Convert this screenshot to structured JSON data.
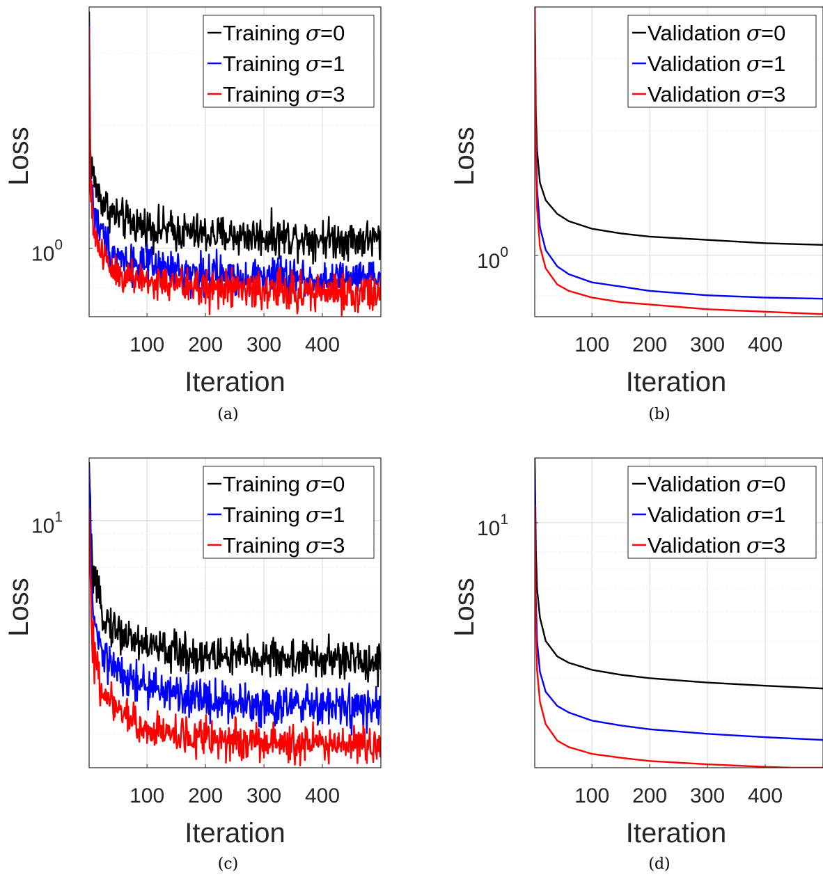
{
  "chart_data": [
    {
      "type": "line",
      "panel": "a",
      "caption": "(a)",
      "xlabel": "Iteration",
      "ylabel": "Loss",
      "x_ticks": [
        100,
        200,
        300,
        400
      ],
      "y_scale": "log",
      "y_tick_labels": [
        {
          "value": 1,
          "base": "10",
          "exp": "0"
        }
      ],
      "xlim": [
        1,
        500
      ],
      "ylim": [
        0.68,
        3.9
      ],
      "grid": true,
      "legend_position": "top-right",
      "noise": 0.055,
      "legend_prefix": "Training",
      "legend_suffix": "",
      "series": [
        {
          "sigma": "=0",
          "color": "#000000",
          "x": [
            1,
            3,
            10,
            20,
            40,
            60,
            100,
            150,
            200,
            300,
            400,
            500
          ],
          "y": [
            3.8,
            1.7,
            1.45,
            1.33,
            1.22,
            1.17,
            1.13,
            1.1,
            1.08,
            1.07,
            1.06,
            1.05
          ]
        },
        {
          "sigma": "=1",
          "color": "#0000ff",
          "x": [
            1,
            3,
            10,
            20,
            40,
            60,
            100,
            150,
            200,
            300,
            400,
            500
          ],
          "y": [
            3.6,
            1.5,
            1.22,
            1.1,
            0.99,
            0.94,
            0.9,
            0.88,
            0.86,
            0.85,
            0.84,
            0.84
          ]
        },
        {
          "sigma": "=3",
          "color": "#ff0000",
          "x": [
            1,
            3,
            10,
            20,
            40,
            60,
            100,
            150,
            200,
            300,
            400,
            500
          ],
          "y": [
            3.5,
            1.35,
            1.1,
            0.99,
            0.9,
            0.86,
            0.83,
            0.81,
            0.8,
            0.79,
            0.78,
            0.78
          ]
        }
      ]
    },
    {
      "type": "line",
      "panel": "b",
      "caption": "(b)",
      "xlabel": "Iteration",
      "ylabel": "Loss",
      "x_ticks": [
        100,
        200,
        300,
        400
      ],
      "y_scale": "log",
      "y_tick_labels": [
        {
          "value": 1,
          "base": "10",
          "exp": "0"
        }
      ],
      "xlim": [
        1,
        500
      ],
      "ylim": [
        0.71,
        4.0
      ],
      "grid": true,
      "legend_position": "top-right",
      "noise": 0,
      "legend_prefix": "Validation",
      "legend_suffix": "",
      "series": [
        {
          "sigma": "=0",
          "color": "#000000",
          "x": [
            1,
            3,
            5,
            10,
            20,
            40,
            60,
            100,
            150,
            200,
            300,
            400,
            500
          ],
          "y": [
            4.2,
            2.2,
            1.8,
            1.5,
            1.36,
            1.26,
            1.21,
            1.16,
            1.13,
            1.11,
            1.09,
            1.07,
            1.06
          ]
        },
        {
          "sigma": "=1",
          "color": "#0000ff",
          "x": [
            1,
            3,
            5,
            10,
            20,
            40,
            60,
            100,
            150,
            200,
            300,
            400,
            500
          ],
          "y": [
            4.2,
            1.9,
            1.45,
            1.17,
            1.03,
            0.94,
            0.9,
            0.86,
            0.84,
            0.82,
            0.8,
            0.79,
            0.785
          ]
        },
        {
          "sigma": "=3",
          "color": "#ff0000",
          "x": [
            1,
            3,
            5,
            10,
            20,
            40,
            60,
            100,
            150,
            200,
            300,
            400,
            500
          ],
          "y": [
            4.2,
            1.75,
            1.3,
            1.05,
            0.93,
            0.85,
            0.82,
            0.79,
            0.77,
            0.76,
            0.74,
            0.73,
            0.72
          ]
        }
      ]
    },
    {
      "type": "line",
      "panel": "c",
      "caption": "(c)",
      "xlabel": "Iteration",
      "ylabel": "Loss",
      "x_ticks": [
        100,
        200,
        300,
        400
      ],
      "y_scale": "log",
      "y_tick_labels": [
        {
          "value": 10,
          "base": "10",
          "exp": "1"
        }
      ],
      "xlim": [
        1,
        500
      ],
      "ylim": [
        1.55,
        16.0
      ],
      "grid": true,
      "legend_position": "top-right",
      "noise": 0.075,
      "legend_prefix": "Training",
      "legend_suffix": "",
      "series": [
        {
          "sigma": "=0",
          "color": "#000000",
          "x": [
            1,
            5,
            10,
            20,
            40,
            60,
            100,
            150,
            200,
            300,
            400,
            500
          ],
          "y": [
            15.5,
            7.5,
            6.2,
            5.2,
            4.5,
            4.2,
            3.9,
            3.7,
            3.6,
            3.55,
            3.5,
            3.45
          ]
        },
        {
          "sigma": "=1",
          "color": "#0000ff",
          "x": [
            1,
            5,
            10,
            20,
            40,
            60,
            100,
            150,
            200,
            300,
            400,
            500
          ],
          "y": [
            15.0,
            5.8,
            4.6,
            3.8,
            3.3,
            3.05,
            2.85,
            2.7,
            2.6,
            2.5,
            2.45,
            2.4
          ]
        },
        {
          "sigma": "=3",
          "color": "#ff0000",
          "x": [
            1,
            5,
            10,
            20,
            40,
            60,
            100,
            150,
            200,
            300,
            400,
            500
          ],
          "y": [
            11.0,
            4.4,
            3.5,
            2.9,
            2.5,
            2.3,
            2.1,
            2.0,
            1.95,
            1.9,
            1.85,
            1.8
          ]
        }
      ]
    },
    {
      "type": "line",
      "panel": "d",
      "caption": "(d)",
      "xlabel": "Iteration",
      "ylabel": "Loss",
      "x_ticks": [
        100,
        200,
        300,
        400
      ],
      "y_scale": "log",
      "y_tick_labels": [
        {
          "value": 10,
          "base": "10",
          "exp": "1"
        }
      ],
      "xlim": [
        1,
        500
      ],
      "ylim": [
        1.5,
        16.5
      ],
      "grid": true,
      "legend_position": "top-right",
      "noise": 0,
      "legend_prefix": "Validation",
      "legend_suffix": "",
      "series": [
        {
          "sigma": "=0",
          "color": "#000000",
          "x": [
            1,
            3,
            5,
            10,
            20,
            40,
            60,
            100,
            150,
            200,
            300,
            400,
            500
          ],
          "y": [
            17.0,
            8.0,
            6.0,
            4.8,
            4.0,
            3.55,
            3.38,
            3.2,
            3.08,
            3.0,
            2.9,
            2.83,
            2.77
          ]
        },
        {
          "sigma": "=1",
          "color": "#0000ff",
          "x": [
            1,
            3,
            5,
            10,
            20,
            40,
            60,
            100,
            150,
            200,
            300,
            400,
            500
          ],
          "y": [
            14.0,
            5.5,
            4.0,
            3.15,
            2.7,
            2.42,
            2.3,
            2.16,
            2.08,
            2.02,
            1.95,
            1.9,
            1.86
          ]
        },
        {
          "sigma": "=3",
          "color": "#ff0000",
          "x": [
            1,
            3,
            5,
            10,
            20,
            40,
            60,
            100,
            150,
            200,
            300,
            400,
            500
          ],
          "y": [
            11.5,
            4.4,
            3.2,
            2.5,
            2.1,
            1.85,
            1.76,
            1.67,
            1.62,
            1.58,
            1.54,
            1.51,
            1.49
          ]
        }
      ]
    }
  ]
}
